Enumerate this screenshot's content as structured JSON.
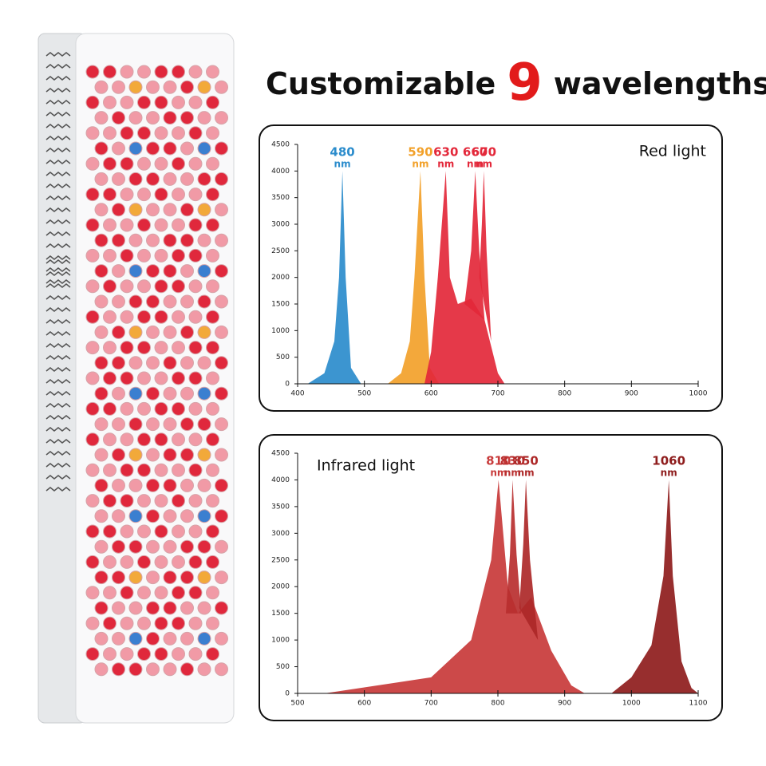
{
  "heading": {
    "text1": "Customizable",
    "number": "9",
    "text2": "wavelengths"
  },
  "chart_data": [
    {
      "type": "area",
      "title": "Red light",
      "unit": "nm",
      "xlim": [
        400,
        1000
      ],
      "xticks": [
        400,
        500,
        600,
        700,
        800,
        900,
        1000
      ],
      "ylim": [
        0,
        4500
      ],
      "yticks": [
        0,
        500,
        1000,
        1500,
        2000,
        2500,
        3000,
        3500,
        4000,
        4500
      ],
      "series": [
        {
          "name": "480",
          "color": "#2b8ccc",
          "x": [
            415,
            440,
            455,
            462,
            467,
            472,
            480,
            495
          ],
          "values": [
            0,
            200,
            800,
            2000,
            4000,
            2000,
            300,
            0
          ]
        },
        {
          "name": "590",
          "color": "#f2a12a",
          "x": [
            535,
            555,
            568,
            575,
            584,
            590,
            598,
            612
          ],
          "values": [
            0,
            200,
            800,
            2000,
            4000,
            2000,
            300,
            0
          ]
        },
        {
          "name": "630",
          "color": "#e3283a",
          "x": [
            590,
            600,
            610,
            616,
            622,
            628,
            640,
            660,
            680,
            700,
            710
          ],
          "values": [
            0,
            600,
            2000,
            3000,
            4000,
            2000,
            1500,
            1600,
            1200,
            200,
            0
          ]
        },
        {
          "name": "660",
          "color": "#e3283a",
          "x": [
            650,
            660,
            666,
            672,
            680
          ],
          "values": [
            1500,
            2500,
            4000,
            2500,
            1200
          ]
        },
        {
          "name": "670",
          "color": "#e3283a",
          "x": [
            672,
            676,
            679,
            683,
            690
          ],
          "values": [
            2000,
            3000,
            4000,
            2500,
            800
          ]
        }
      ]
    },
    {
      "type": "area",
      "title": "Infrared light",
      "unit": "nm",
      "xlim": [
        500,
        1100
      ],
      "xticks": [
        500,
        600,
        700,
        800,
        900,
        1000,
        1100
      ],
      "ylim": [
        0,
        4500
      ],
      "yticks": [
        0,
        500,
        1000,
        1500,
        2000,
        2500,
        3000,
        3500,
        4000,
        4500
      ],
      "series": [
        {
          "name": "810",
          "color": "#c83a3a",
          "x": [
            540,
            700,
            760,
            790,
            801,
            815,
            830,
            850,
            880,
            910,
            930
          ],
          "values": [
            0,
            300,
            1000,
            2500,
            4000,
            2000,
            1500,
            1800,
            800,
            150,
            0
          ]
        },
        {
          "name": "830",
          "color": "#b92f2f",
          "x": [
            812,
            818,
            822,
            828,
            835
          ],
          "values": [
            1500,
            2600,
            4000,
            2600,
            1500
          ]
        },
        {
          "name": "850",
          "color": "#ad2828",
          "x": [
            832,
            838,
            842,
            848,
            860
          ],
          "values": [
            1600,
            2800,
            4000,
            2500,
            1000
          ]
        },
        {
          "name": "1060",
          "color": "#8e1c1c",
          "x": [
            970,
            1000,
            1030,
            1048,
            1056,
            1062,
            1075,
            1090,
            1100
          ],
          "values": [
            0,
            300,
            900,
            2200,
            4000,
            2200,
            600,
            100,
            0
          ]
        }
      ]
    }
  ]
}
